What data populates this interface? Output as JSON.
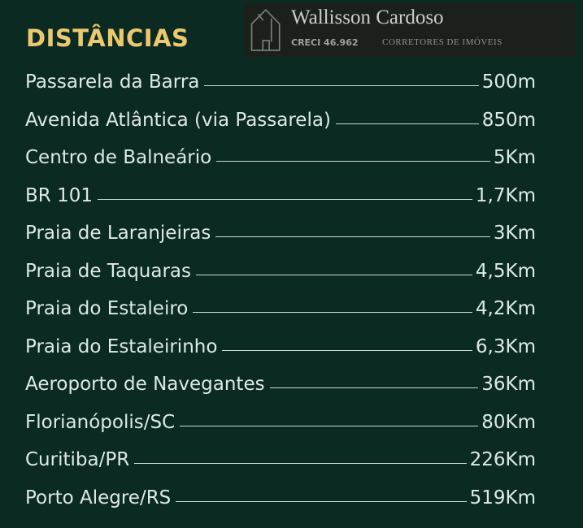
{
  "title": "DISTÂNCIAS",
  "rows": [
    {
      "label": "Passarela da Barra",
      "value": "500m"
    },
    {
      "label": "Avenida Atlântica (via Passarela)",
      "value": "850m"
    },
    {
      "label": "Centro de Balneário",
      "value": "5Km"
    },
    {
      "label": "BR 101",
      "value": "1,7Km"
    },
    {
      "label": "Praia de Laranjeiras",
      "value": "3Km"
    },
    {
      "label": "Praia de Taquaras",
      "value": "4,5Km"
    },
    {
      "label": "Praia do Estaleiro",
      "value": "4,2Km"
    },
    {
      "label": "Praia do Estaleirinho",
      "value": "6,3Km"
    },
    {
      "label": "Aeroporto de Navegantes",
      "value": "36Km"
    },
    {
      "label": "Florianópolis/SC",
      "value": "80Km"
    },
    {
      "label": "Curitiba/PR",
      "value": "226Km"
    },
    {
      "label": "Porto Alegre/RS",
      "value": "519Km"
    }
  ],
  "watermark": {
    "name": "Wallisson Cardoso",
    "creci": "CRECI 46.962",
    "subtitle": "CORRETORES DE IMÓVEIS"
  },
  "colors": {
    "background": "#0b2a22",
    "title": "#ecc96e",
    "text": "#dde9e4"
  }
}
